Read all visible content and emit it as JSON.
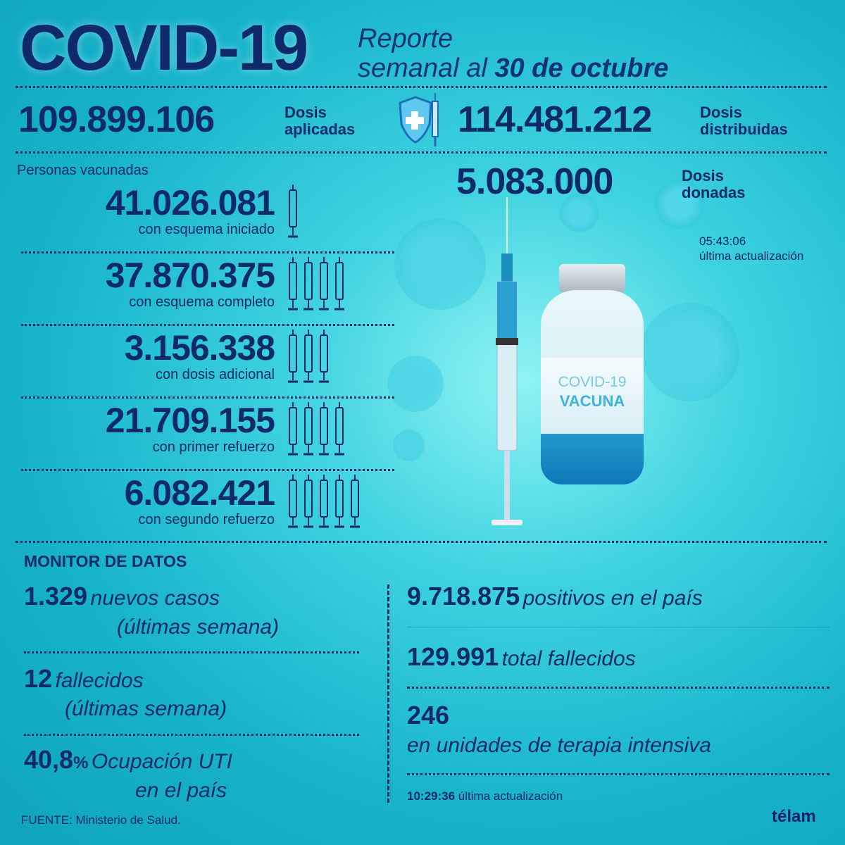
{
  "header": {
    "title": "COVID-19",
    "subtitle_line1": "Reporte",
    "subtitle_line2": "semanal al",
    "date": "30 de octubre"
  },
  "doses": {
    "applied": {
      "value": "109.899.106",
      "label1": "Dosis",
      "label2": "aplicadas"
    },
    "distributed": {
      "value": "114.481.212",
      "label1": "Dosis",
      "label2": "distribuidas"
    },
    "donated": {
      "value": "5.083.000",
      "label1": "Dosis",
      "label2": "donadas"
    },
    "update_time": "05:43:06",
    "update_label": "última actualización"
  },
  "vaccinated": {
    "heading": "Personas vacunadas",
    "rows": [
      {
        "value": "41.026.081",
        "caption": "con esquema iniciado",
        "syringes": 1
      },
      {
        "value": "37.870.375",
        "caption": "con esquema completo",
        "syringes": 4
      },
      {
        "value": "3.156.338",
        "caption": "con dosis adicional",
        "syringes": 3
      },
      {
        "value": "21.709.155",
        "caption": "con primer refuerzo",
        "syringes": 4
      },
      {
        "value": "6.082.421",
        "caption": "con segundo refuerzo",
        "syringes": 5
      }
    ]
  },
  "vial": {
    "line1": "COVID-19",
    "line2": "VACUNA"
  },
  "monitor": {
    "heading": "MONITOR DE DATOS",
    "new_cases": {
      "value": "1.329",
      "text1": "nuevos casos",
      "text2": "(últimas semana)"
    },
    "deaths_week": {
      "value": "12",
      "text1": "fallecidos",
      "text2": "(últimas semana)"
    },
    "icu": {
      "value": "40,8",
      "unit": "%",
      "text1": "Ocupación UTI",
      "text2": "en el país"
    },
    "positives": {
      "value": "9.718.875",
      "text": "positivos en el país"
    },
    "total_deaths": {
      "value": "129.991",
      "text": "total fallecidos"
    },
    "icu_count": {
      "value": "246",
      "text": "en unidades de terapia intensiva"
    },
    "update_time": "10:29:36",
    "update_label": "última actualización"
  },
  "footer": {
    "source": "FUENTE: Ministerio de Salud.",
    "logo": "télam"
  },
  "colors": {
    "navy": "#0f2a6b",
    "cyan": "#17b4cb"
  }
}
